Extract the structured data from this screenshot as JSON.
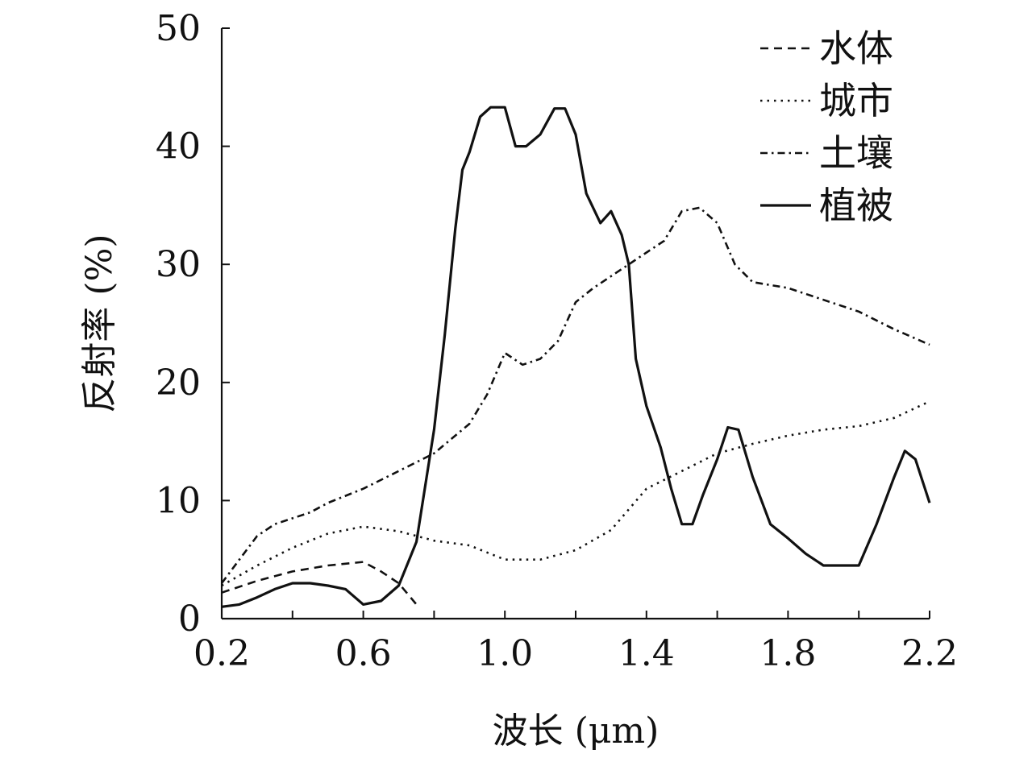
{
  "chart_data": {
    "type": "line",
    "title": "",
    "xlabel": "波长 (μm)",
    "ylabel": "反射率 (%)",
    "xlim": [
      0.2,
      2.2
    ],
    "ylim": [
      0,
      50
    ],
    "xticks": [
      "0.2",
      "0.6",
      "1.0",
      "1.4",
      "1.8",
      "2.2"
    ],
    "yticks": [
      "0",
      "10",
      "20",
      "30",
      "40",
      "50"
    ],
    "grid": false,
    "legend_position": "top-right",
    "series": [
      {
        "name": "水体",
        "style": "dashed",
        "x": [
          0.2,
          0.3,
          0.4,
          0.5,
          0.6,
          0.65,
          0.7,
          0.75
        ],
        "y": [
          2.2,
          3.2,
          4.0,
          4.5,
          4.8,
          4.0,
          3.0,
          1.2
        ]
      },
      {
        "name": "城市",
        "style": "dotted",
        "x": [
          0.2,
          0.3,
          0.4,
          0.5,
          0.6,
          0.7,
          0.8,
          0.9,
          1.0,
          1.1,
          1.2,
          1.3,
          1.4,
          1.5,
          1.6,
          1.7,
          1.8,
          1.9,
          2.0,
          2.1,
          2.2
        ],
        "y": [
          2.8,
          4.5,
          6.0,
          7.2,
          7.8,
          7.4,
          6.6,
          6.2,
          5.0,
          5.0,
          5.8,
          7.5,
          11.0,
          12.5,
          14.0,
          14.8,
          15.5,
          16.0,
          16.3,
          17.0,
          18.4
        ]
      },
      {
        "name": "土壤",
        "style": "dash-dot",
        "x": [
          0.2,
          0.25,
          0.3,
          0.35,
          0.4,
          0.45,
          0.5,
          0.6,
          0.7,
          0.8,
          0.9,
          0.95,
          1.0,
          1.05,
          1.1,
          1.15,
          1.2,
          1.25,
          1.3,
          1.35,
          1.4,
          1.45,
          1.5,
          1.55,
          1.6,
          1.65,
          1.7,
          1.8,
          1.9,
          2.0,
          2.1,
          2.2
        ],
        "y": [
          3.0,
          5.0,
          7.0,
          8.0,
          8.5,
          9.0,
          9.8,
          11.0,
          12.5,
          14.0,
          16.5,
          19.0,
          22.5,
          21.5,
          22.0,
          23.5,
          26.8,
          28.0,
          29.0,
          30.0,
          31.0,
          32.0,
          34.5,
          34.8,
          33.5,
          30.0,
          28.5,
          28.0,
          27.0,
          26.0,
          24.5,
          23.2
        ]
      },
      {
        "name": "植被",
        "style": "solid",
        "x": [
          0.2,
          0.25,
          0.3,
          0.35,
          0.4,
          0.45,
          0.5,
          0.55,
          0.6,
          0.65,
          0.7,
          0.75,
          0.8,
          0.83,
          0.86,
          0.88,
          0.9,
          0.93,
          0.96,
          1.0,
          1.03,
          1.06,
          1.1,
          1.14,
          1.17,
          1.2,
          1.23,
          1.27,
          1.3,
          1.33,
          1.35,
          1.37,
          1.4,
          1.44,
          1.47,
          1.5,
          1.53,
          1.56,
          1.6,
          1.63,
          1.66,
          1.7,
          1.75,
          1.8,
          1.85,
          1.9,
          1.95,
          2.0,
          2.05,
          2.1,
          2.13,
          2.16,
          2.2
        ],
        "y": [
          1.0,
          1.2,
          1.8,
          2.5,
          3.0,
          3.0,
          2.8,
          2.5,
          1.2,
          1.5,
          2.8,
          6.5,
          16.0,
          24.0,
          33.0,
          38.0,
          39.5,
          42.5,
          43.3,
          43.3,
          40.0,
          40.0,
          41.0,
          43.2,
          43.2,
          41.0,
          36.0,
          33.5,
          34.5,
          32.5,
          30.0,
          22.0,
          18.0,
          14.5,
          11.0,
          8.0,
          8.0,
          10.5,
          13.5,
          16.2,
          16.0,
          12.0,
          8.0,
          6.8,
          5.5,
          4.5,
          4.5,
          4.5,
          8.0,
          12.0,
          14.2,
          13.5,
          9.8
        ]
      }
    ]
  }
}
